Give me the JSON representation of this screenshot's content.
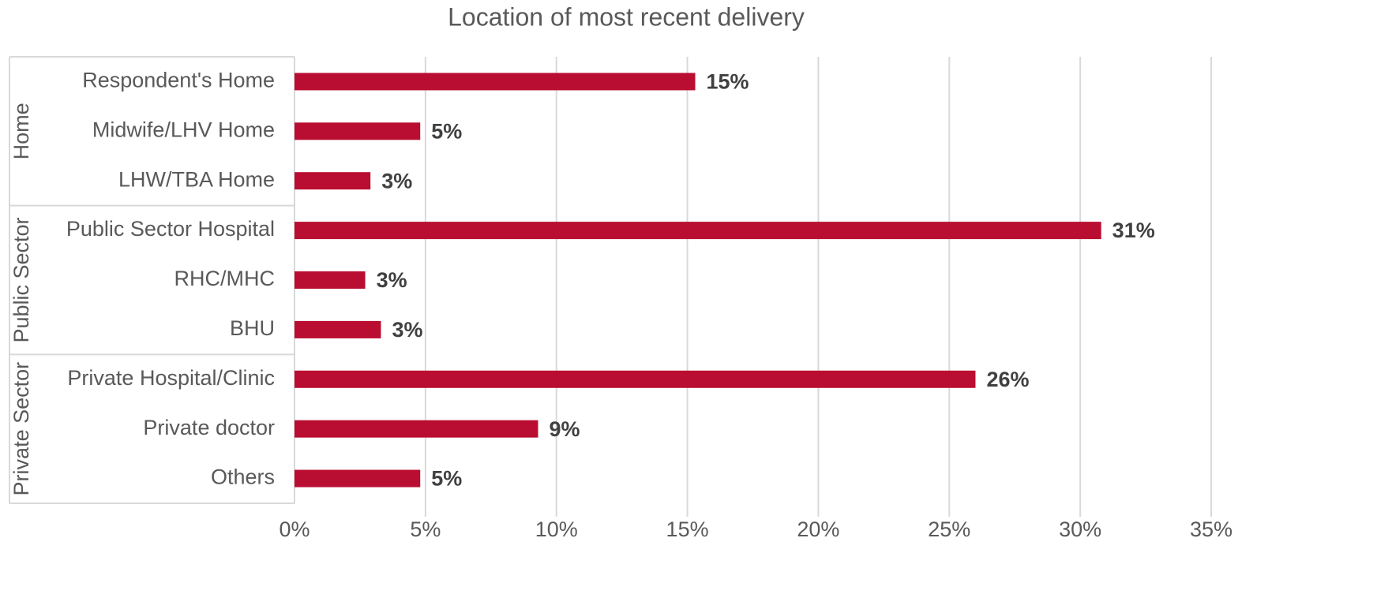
{
  "chart_data": {
    "type": "bar",
    "orientation": "horizontal",
    "title": "Location of most recent delivery",
    "color": "#b90e31",
    "groups": [
      {
        "name": "Home",
        "categories": [
          "Respondent's Home",
          "Midwife/LHV Home",
          "LHW/TBA Home"
        ],
        "values": [
          15.3,
          4.8,
          2.9
        ],
        "value_labels": [
          "15%",
          "5%",
          "3%"
        ]
      },
      {
        "name": "Public Sector",
        "categories": [
          "Public Sector Hospital",
          "RHC/MHC",
          "BHU"
        ],
        "values": [
          30.8,
          2.7,
          3.3
        ],
        "value_labels": [
          "31%",
          "3%",
          "3%"
        ]
      },
      {
        "name": "Private Sector",
        "categories": [
          "Private Hospital/Clinic",
          "Private doctor",
          "Others"
        ],
        "values": [
          26.0,
          9.3,
          4.8
        ],
        "value_labels": [
          "26%",
          "9%",
          "5%"
        ]
      }
    ],
    "xlim": [
      0,
      35
    ],
    "xticks": [
      {
        "value": 0,
        "label": "0%"
      },
      {
        "value": 5,
        "label": "5%"
      },
      {
        "value": 10,
        "label": "10%"
      },
      {
        "value": 15,
        "label": "15%"
      },
      {
        "value": 20,
        "label": "20%"
      },
      {
        "value": 25,
        "label": "25%"
      },
      {
        "value": 30,
        "label": "30%"
      },
      {
        "value": 35,
        "label": "35%"
      }
    ],
    "grid": true
  }
}
